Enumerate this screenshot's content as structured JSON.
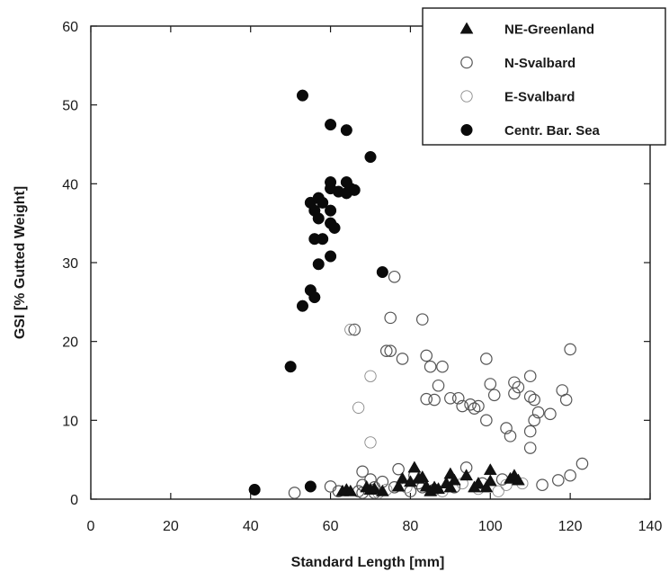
{
  "chart_data": {
    "type": "scatter",
    "title": "",
    "xlabel": "Standard Length [mm]",
    "ylabel": "GSI [% Gutted Weight]",
    "xlim": [
      0,
      140
    ],
    "ylim": [
      0,
      60
    ],
    "x_ticks": [
      "0",
      "20",
      "40",
      "60",
      "80",
      "100",
      "120",
      "140"
    ],
    "y_ticks": [
      "0",
      "10",
      "20",
      "30",
      "40",
      "50",
      "60"
    ],
    "grid": false,
    "legend_position": "top-right",
    "series": [
      {
        "name": "NE-Greenland",
        "marker": "filled-triangle",
        "color": "#111111",
        "points": [
          [
            63,
            1.0
          ],
          [
            64,
            1.2
          ],
          [
            65,
            1.0
          ],
          [
            69,
            1.5
          ],
          [
            70,
            1.2
          ],
          [
            71,
            1.3
          ],
          [
            73,
            1.0
          ],
          [
            77,
            1.6
          ],
          [
            78,
            2.6
          ],
          [
            80,
            2.2
          ],
          [
            81,
            4.0
          ],
          [
            82,
            2.6
          ],
          [
            83,
            2.8
          ],
          [
            84,
            1.6
          ],
          [
            85,
            1.0
          ],
          [
            86,
            1.5
          ],
          [
            87,
            1.3
          ],
          [
            89,
            2.0
          ],
          [
            90,
            3.2
          ],
          [
            90,
            1.5
          ],
          [
            91,
            2.4
          ],
          [
            94,
            3.0
          ],
          [
            96,
            1.5
          ],
          [
            97,
            2.0
          ],
          [
            99,
            1.5
          ],
          [
            100,
            3.7
          ],
          [
            100,
            2.3
          ],
          [
            105,
            2.6
          ],
          [
            106,
            3.0
          ],
          [
            107,
            2.4
          ]
        ]
      },
      {
        "name": "N-Svalbard",
        "marker": "open-circle",
        "color": "#555555",
        "points": [
          [
            51,
            0.8
          ],
          [
            60,
            1.6
          ],
          [
            62,
            1.0
          ],
          [
            66,
            21.5
          ],
          [
            67,
            1.0
          ],
          [
            68,
            3.5
          ],
          [
            68,
            1.8
          ],
          [
            68,
            0.8
          ],
          [
            70,
            2.5
          ],
          [
            71,
            1.5
          ],
          [
            71,
            0.8
          ],
          [
            73,
            2.2
          ],
          [
            74,
            18.8
          ],
          [
            75,
            18.8
          ],
          [
            75,
            23.0
          ],
          [
            76,
            28.2
          ],
          [
            76,
            1.5
          ],
          [
            77,
            3.8
          ],
          [
            78,
            17.8
          ],
          [
            80,
            1.0
          ],
          [
            81,
            3.0
          ],
          [
            82,
            2.0
          ],
          [
            83,
            22.8
          ],
          [
            83,
            1.5
          ],
          [
            84,
            18.2
          ],
          [
            84,
            12.7
          ],
          [
            85,
            16.8
          ],
          [
            86,
            1.2
          ],
          [
            86,
            12.6
          ],
          [
            87,
            14.4
          ],
          [
            88,
            16.8
          ],
          [
            90,
            12.8
          ],
          [
            91,
            1.5
          ],
          [
            92,
            12.8
          ],
          [
            93,
            11.8
          ],
          [
            94,
            4.0
          ],
          [
            95,
            12.0
          ],
          [
            96,
            11.5
          ],
          [
            97,
            11.8
          ],
          [
            98,
            2.0
          ],
          [
            99,
            17.8
          ],
          [
            99,
            10.0
          ],
          [
            100,
            14.6
          ],
          [
            101,
            13.2
          ],
          [
            103,
            2.5
          ],
          [
            104,
            9.0
          ],
          [
            105,
            8.0
          ],
          [
            106,
            14.8
          ],
          [
            106,
            13.4
          ],
          [
            107,
            14.2
          ],
          [
            110,
            15.6
          ],
          [
            110,
            13.0
          ],
          [
            110,
            6.5
          ],
          [
            110,
            8.6
          ],
          [
            111,
            12.6
          ],
          [
            111,
            10.0
          ],
          [
            112,
            11.0
          ],
          [
            113,
            1.8
          ],
          [
            115,
            10.8
          ],
          [
            117,
            2.4
          ],
          [
            118,
            13.8
          ],
          [
            119,
            12.6
          ],
          [
            120,
            19.0
          ],
          [
            120,
            3.0
          ],
          [
            123,
            4.5
          ]
        ]
      },
      {
        "name": "E-Svalbard",
        "marker": "open-circle-light",
        "color": "#8a8a8a",
        "points": [
          [
            65,
            21.5
          ],
          [
            67,
            11.6
          ],
          [
            70,
            15.6
          ],
          [
            70,
            7.2
          ],
          [
            72,
            0.8
          ],
          [
            74,
            1.2
          ],
          [
            79,
            1.5
          ],
          [
            88,
            1.0
          ],
          [
            93,
            2.0
          ],
          [
            97,
            1.3
          ],
          [
            102,
            1.0
          ],
          [
            104,
            1.8
          ],
          [
            108,
            2.0
          ]
        ]
      },
      {
        "name": "Centr. Bar. Sea",
        "marker": "filled-circle",
        "color": "#0a0a0a",
        "points": [
          [
            41,
            1.2
          ],
          [
            50,
            16.8
          ],
          [
            53,
            51.2
          ],
          [
            53,
            24.5
          ],
          [
            55,
            37.6
          ],
          [
            55,
            26.5
          ],
          [
            55,
            1.6
          ],
          [
            56,
            25.6
          ],
          [
            56,
            33.0
          ],
          [
            56,
            36.6
          ],
          [
            57,
            38.2
          ],
          [
            57,
            35.6
          ],
          [
            57,
            29.8
          ],
          [
            58,
            33.0
          ],
          [
            58,
            37.6
          ],
          [
            60,
            47.5
          ],
          [
            60,
            40.2
          ],
          [
            60,
            39.4
          ],
          [
            60,
            36.6
          ],
          [
            60,
            35.0
          ],
          [
            60,
            30.8
          ],
          [
            61,
            34.4
          ],
          [
            62,
            39.0
          ],
          [
            64,
            46.8
          ],
          [
            64,
            40.2
          ],
          [
            64,
            38.8
          ],
          [
            65,
            39.4
          ],
          [
            66,
            39.2
          ],
          [
            70,
            43.4
          ],
          [
            73,
            28.8
          ]
        ]
      }
    ]
  }
}
